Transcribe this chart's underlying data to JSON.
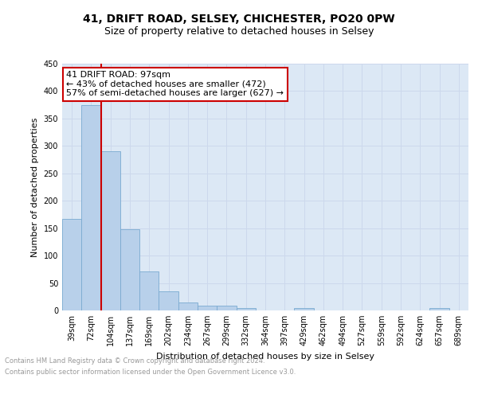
{
  "title": "41, DRIFT ROAD, SELSEY, CHICHESTER, PO20 0PW",
  "subtitle": "Size of property relative to detached houses in Selsey",
  "xlabel": "Distribution of detached houses by size in Selsey",
  "ylabel": "Number of detached properties",
  "bar_labels": [
    "39sqm",
    "72sqm",
    "104sqm",
    "137sqm",
    "169sqm",
    "202sqm",
    "234sqm",
    "267sqm",
    "299sqm",
    "332sqm",
    "364sqm",
    "397sqm",
    "429sqm",
    "462sqm",
    "494sqm",
    "527sqm",
    "559sqm",
    "592sqm",
    "624sqm",
    "657sqm",
    "689sqm"
  ],
  "bar_values": [
    167,
    375,
    290,
    148,
    71,
    35,
    14,
    8,
    8,
    4,
    0,
    0,
    4,
    0,
    0,
    0,
    0,
    0,
    0,
    4,
    0
  ],
  "bar_color": "#b8d0ea",
  "bar_edge_color": "#7aaad0",
  "vline_color": "#cc0000",
  "vline_x_index": 1.5,
  "annotation_text": "41 DRIFT ROAD: 97sqm\n← 43% of detached houses are smaller (472)\n57% of semi-detached houses are larger (627) →",
  "annotation_box_facecolor": "#ffffff",
  "annotation_box_edgecolor": "#cc0000",
  "ylim": [
    0,
    450
  ],
  "yticks": [
    0,
    50,
    100,
    150,
    200,
    250,
    300,
    350,
    400,
    450
  ],
  "footer_line1": "Contains HM Land Registry data © Crown copyright and database right 2024.",
  "footer_line2": "Contains public sector information licensed under the Open Government Licence v3.0.",
  "grid_color": "#ccd8ec",
  "background_color": "#dce8f5",
  "title_fontsize": 10,
  "subtitle_fontsize": 9,
  "tick_fontsize": 7,
  "ylabel_fontsize": 8,
  "xlabel_fontsize": 8,
  "annotation_fontsize": 8,
  "footer_fontsize": 6,
  "footer_color": "#999999"
}
